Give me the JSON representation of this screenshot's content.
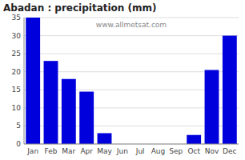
{
  "chart_data": {
    "type": "bar",
    "title": "Abadan : precipitation (mm)",
    "categories": [
      "Jan",
      "Feb",
      "Mar",
      "Apr",
      "May",
      "Jun",
      "Jul",
      "Aug",
      "Sep",
      "Oct",
      "Nov",
      "Dec"
    ],
    "values": [
      35,
      23,
      18,
      14.5,
      3,
      0,
      0,
      0,
      0,
      2.5,
      20.5,
      30
    ],
    "color": "#0000dd",
    "ylim": [
      0,
      35
    ],
    "yticks": [
      0,
      5,
      10,
      15,
      20,
      25,
      30,
      35
    ],
    "grid": true,
    "annotations": [
      "www.allmetsat.com"
    ]
  }
}
